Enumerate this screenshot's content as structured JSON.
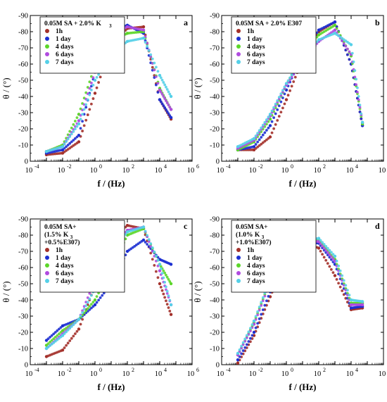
{
  "colors": {
    "1h": "#a3302a",
    "1 day": "#1c2fd1",
    "4 days": "#5cd62a",
    "6 days": "#b04be0",
    "7 days": "#55d0e8"
  },
  "chart_data": [
    {
      "type": "scatter",
      "panel_label": "a",
      "title_lines": [
        "0.05M SA + 2.0% K",
        ""
      ],
      "title_sub": "3",
      "xlabel": "f / (Hz)",
      "ylabel": "θ / (°)",
      "xscale": "log",
      "xlim": [
        0.0001,
        1000000
      ],
      "ylim": [
        0,
        -90
      ],
      "x_ticks": [
        "10-4",
        "10-2",
        "100",
        "102",
        "104",
        "106"
      ],
      "y_ticks": [
        "-90",
        "-80",
        "-70",
        "-60",
        "-50",
        "-40",
        "-30",
        "-20",
        "-10",
        "0"
      ],
      "series": [
        {
          "name": "1h",
          "x": [
            0.001,
            0.01,
            0.1,
            1,
            10,
            100,
            1000,
            10000,
            50000
          ],
          "y": [
            -4,
            -5,
            -12,
            -42,
            -72,
            -82,
            -83,
            -38,
            -26
          ]
        },
        {
          "name": "1 day",
          "x": [
            0.001,
            0.01,
            0.1,
            1,
            10,
            100,
            1000,
            10000,
            50000
          ],
          "y": [
            -5,
            -7,
            -16,
            -55,
            -80,
            -84,
            -79,
            -38,
            -27
          ]
        },
        {
          "name": "4 days",
          "x": [
            0.001,
            0.01,
            0.1,
            1,
            10,
            100,
            1000,
            10000,
            50000
          ],
          "y": [
            -6,
            -10,
            -29,
            -59,
            -74,
            -79,
            -80,
            -45,
            -32
          ]
        },
        {
          "name": "6 days",
          "x": [
            0.001,
            0.01,
            0.1,
            1,
            10,
            100,
            1000,
            10000,
            50000
          ],
          "y": [
            -6,
            -9,
            -25,
            -55,
            -78,
            -83,
            -81,
            -44,
            -32
          ]
        },
        {
          "name": "7 days",
          "x": [
            0.001,
            0.01,
            0.1,
            1,
            10,
            100,
            1000,
            10000,
            50000
          ],
          "y": [
            -6,
            -9,
            -23,
            -50,
            -66,
            -74,
            -76,
            -53,
            -40
          ]
        }
      ]
    },
    {
      "type": "scatter",
      "panel_label": "b",
      "title_lines": [
        "0.05M SA + 2.0% E307",
        ""
      ],
      "title_sub": "",
      "xlabel": "f / (Hz)",
      "ylabel": "θ / (°)",
      "xscale": "log",
      "xlim": [
        0.0001,
        1000000
      ],
      "ylim": [
        0,
        -90
      ],
      "x_ticks": [
        "10-4",
        "10-2",
        "100",
        "102",
        "104",
        "106"
      ],
      "y_ticks": [
        "-90",
        "-80",
        "-70",
        "-60",
        "-50",
        "-40",
        "-30",
        "-20",
        "-10",
        "0"
      ],
      "series": [
        {
          "name": "1h",
          "x": [
            0.001,
            0.01,
            0.1,
            1,
            10,
            100,
            1000,
            10000,
            50000
          ],
          "y": [
            -7,
            -7,
            -15,
            -38,
            -63,
            -80,
            -86,
            -60,
            -22
          ]
        },
        {
          "name": "1 day",
          "x": [
            0.001,
            0.01,
            0.1,
            1,
            10,
            100,
            1000,
            10000,
            50000
          ],
          "y": [
            -7,
            -9,
            -22,
            -44,
            -66,
            -81,
            -86,
            -60,
            -22
          ]
        },
        {
          "name": "4 days",
          "x": [
            0.001,
            0.01,
            0.1,
            1,
            10,
            100,
            1000,
            10000,
            50000
          ],
          "y": [
            -7,
            -12,
            -26,
            -47,
            -66,
            -78,
            -84,
            -65,
            -23
          ]
        },
        {
          "name": "6 days",
          "x": [
            0.001,
            0.01,
            0.1,
            1,
            10,
            100,
            1000,
            10000,
            50000
          ],
          "y": [
            -8,
            -13,
            -28,
            -47,
            -62,
            -74,
            -81,
            -66,
            -24
          ]
        },
        {
          "name": "7 days",
          "x": [
            0.001,
            0.01,
            0.1,
            1,
            10,
            100,
            1000,
            10000,
            50000
          ],
          "y": [
            -9,
            -14,
            -29,
            -48,
            -64,
            -75,
            -79,
            -72,
            -24
          ]
        }
      ]
    },
    {
      "type": "scatter",
      "panel_label": "c",
      "title_lines": [
        "0.05M SA+",
        "(1.5% K",
        "+0.5%E307)"
      ],
      "title_sub": "3",
      "xlabel": "f / (Hz)",
      "ylabel": "θ / (°)",
      "xscale": "log",
      "xlim": [
        0.0001,
        1000000
      ],
      "ylim": [
        0,
        -90
      ],
      "x_ticks": [
        "10-4",
        "10-2",
        "100",
        "102",
        "104",
        "106"
      ],
      "y_ticks": [
        "-90",
        "-80",
        "-70",
        "-60",
        "-50",
        "-40",
        "-30",
        "-20",
        "-10",
        "0"
      ],
      "series": [
        {
          "name": "1h",
          "x": [
            0.001,
            0.01,
            0.1,
            1,
            10,
            100,
            1000,
            10000,
            50000
          ],
          "y": [
            -5,
            -9,
            -22,
            -49,
            -77,
            -86,
            -84,
            -50,
            -31
          ]
        },
        {
          "name": "1 day",
          "x": [
            0.001,
            0.01,
            0.1,
            1,
            10,
            100,
            1000,
            10000,
            50000
          ],
          "y": [
            -15,
            -24,
            -28,
            -37,
            -50,
            -70,
            -77,
            -65,
            -62
          ]
        },
        {
          "name": "4 days",
          "x": [
            0.001,
            0.01,
            0.1,
            1,
            10,
            100,
            1000,
            10000,
            50000
          ],
          "y": [
            -12,
            -21,
            -28,
            -40,
            -59,
            -80,
            -84,
            -62,
            -50
          ]
        },
        {
          "name": "6 days",
          "x": [
            0.001,
            0.01,
            0.1,
            1,
            10,
            100,
            1000,
            10000,
            50000
          ],
          "y": [
            -10,
            -19,
            -28,
            -52,
            -72,
            -83,
            -85,
            -58,
            -37
          ]
        },
        {
          "name": "7 days",
          "x": [
            0.001,
            0.01,
            0.1,
            1,
            10,
            100,
            1000,
            10000,
            50000
          ],
          "y": [
            -10,
            -18,
            -28,
            -47,
            -68,
            -82,
            -85,
            -62,
            -37
          ]
        }
      ]
    },
    {
      "type": "scatter",
      "panel_label": "d",
      "title_lines": [
        "0.05M SA+",
        "(1.0% K",
        "+1.0%E307)"
      ],
      "title_sub": "3",
      "xlabel": "f / (Hz)",
      "ylabel": "θ / (°)",
      "xscale": "log",
      "xlim": [
        0.0001,
        1000000
      ],
      "ylim": [
        0,
        -90
      ],
      "x_ticks": [
        "10-4",
        "10-2",
        "100",
        "102",
        "104",
        "106"
      ],
      "y_ticks": [
        "-90",
        "-80",
        "-70",
        "-60",
        "-50",
        "-40",
        "-30",
        "-20",
        "-10",
        "0"
      ],
      "series": [
        {
          "name": "1h",
          "x": [
            0.001,
            0.01,
            0.1,
            1,
            10,
            100,
            1000,
            10000,
            50000
          ],
          "y": [
            -1,
            -18,
            -42,
            -66,
            -76,
            -72,
            -55,
            -34,
            -35
          ]
        },
        {
          "name": "1 day",
          "x": [
            0.001,
            0.01,
            0.1,
            1,
            10,
            100,
            1000,
            10000,
            50000
          ],
          "y": [
            -3,
            -20,
            -45,
            -68,
            -76,
            -75,
            -62,
            -35,
            -36
          ]
        },
        {
          "name": "4 days",
          "x": [
            0.001,
            0.01,
            0.1,
            1,
            10,
            100,
            1000,
            10000,
            50000
          ],
          "y": [
            -6,
            -26,
            -52,
            -72,
            -77,
            -77,
            -65,
            -38,
            -38
          ]
        },
        {
          "name": "6 days",
          "x": [
            0.001,
            0.01,
            0.1,
            1,
            10,
            100,
            1000,
            10000,
            50000
          ],
          "y": [
            -6,
            -25,
            -51,
            -71,
            -77,
            -76,
            -64,
            -37,
            -37
          ]
        },
        {
          "name": "7 days",
          "x": [
            0.001,
            0.01,
            0.1,
            1,
            10,
            100,
            1000,
            10000,
            50000
          ],
          "y": [
            -7,
            -27,
            -53,
            -73,
            -77,
            -78,
            -67,
            -40,
            -39
          ]
        }
      ]
    }
  ]
}
